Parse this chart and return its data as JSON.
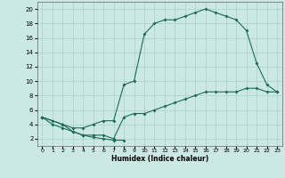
{
  "title": "",
  "xlabel": "Humidex (Indice chaleur)",
  "bg_color": "#cce8e4",
  "line_color": "#1a6b5a",
  "grid_color": "#aacfcc",
  "xlim": [
    -0.5,
    23.5
  ],
  "ylim": [
    1,
    21
  ],
  "xticks": [
    0,
    1,
    2,
    3,
    4,
    5,
    6,
    7,
    8,
    9,
    10,
    11,
    12,
    13,
    14,
    15,
    16,
    17,
    18,
    19,
    20,
    21,
    22,
    23
  ],
  "yticks": [
    2,
    4,
    6,
    8,
    10,
    12,
    14,
    16,
    18,
    20
  ],
  "line1_x": [
    0,
    1,
    2,
    3,
    4,
    5,
    6,
    7,
    8
  ],
  "line1_y": [
    5,
    4,
    3.5,
    3,
    2.5,
    2.2,
    2.0,
    1.8,
    1.8
  ],
  "line2_x": [
    0,
    1,
    2,
    3,
    4,
    5,
    6,
    7,
    8,
    9,
    10,
    11,
    12,
    13,
    14,
    15,
    16,
    17,
    18,
    19,
    20,
    21,
    22,
    23
  ],
  "line2_y": [
    5,
    4.5,
    4,
    3.5,
    3.5,
    4,
    4.5,
    4.5,
    9.5,
    10,
    16.5,
    18,
    18.5,
    18.5,
    19,
    19.5,
    20,
    19.5,
    19,
    18.5,
    17,
    12.5,
    9.5,
    8.5
  ],
  "line3_x": [
    0,
    2,
    3,
    4,
    5,
    6,
    7,
    8,
    9,
    10,
    11,
    12,
    13,
    14,
    15,
    16,
    17,
    18,
    19,
    20,
    21,
    22,
    23
  ],
  "line3_y": [
    5,
    4,
    3,
    2.5,
    2.5,
    2.5,
    2,
    5,
    5.5,
    5.5,
    6,
    6.5,
    7,
    7.5,
    8,
    8.5,
    8.5,
    8.5,
    8.5,
    9,
    9,
    8.5,
    8.5
  ]
}
